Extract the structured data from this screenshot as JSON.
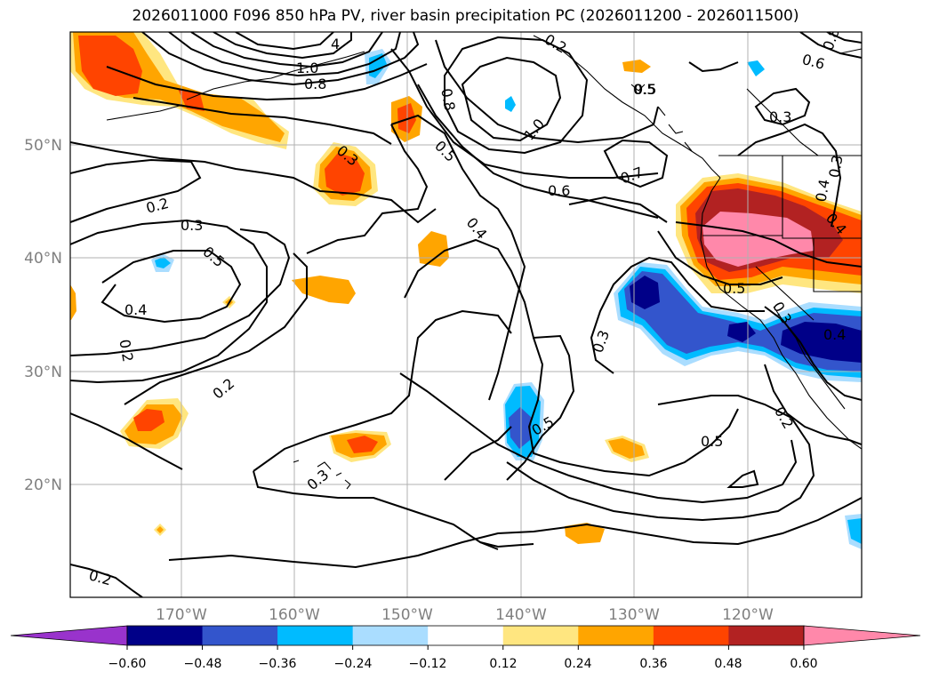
{
  "title": "2026011000 F096 850 hPa PV, river basin precipitation PC (2026011200 - 2026011500)",
  "map": {
    "lat_labels": [
      "50°N",
      "40°N",
      "30°N",
      "20°N"
    ],
    "lon_labels": [
      "170°W",
      "160°W",
      "150°W",
      "140°W",
      "130°W",
      "120°W"
    ],
    "contour_labels": [
      "0.2",
      "0.3",
      "0.5",
      "0.4",
      "0.2",
      "0.2",
      "0.2",
      "0.3",
      "0.4",
      "0.5",
      "0.6",
      "0.7",
      "1.0",
      "0.8",
      "0.5",
      "0.4",
      "0.3",
      "0.5",
      "0.5",
      "0.3",
      "0.5",
      "0.3",
      "0.4",
      "0.2",
      "0.4",
      "0.3",
      "0.3",
      "0.5",
      "0.6",
      "0.8",
      "1.0",
      "0.8",
      "4",
      "0.2"
    ]
  },
  "colorbar": {
    "ticks": [
      "−0.60",
      "−0.48",
      "−0.36",
      "−0.24",
      "−0.12",
      "0.12",
      "0.24",
      "0.36",
      "0.48",
      "0.60"
    ],
    "colors": [
      "#9933cc",
      "#000088",
      "#3355cc",
      "#00bbff",
      "#aaddff",
      "#ffffff",
      "#ffe680",
      "#ffa500",
      "#ff4400",
      "#b22222",
      "#ff88aa"
    ]
  }
}
